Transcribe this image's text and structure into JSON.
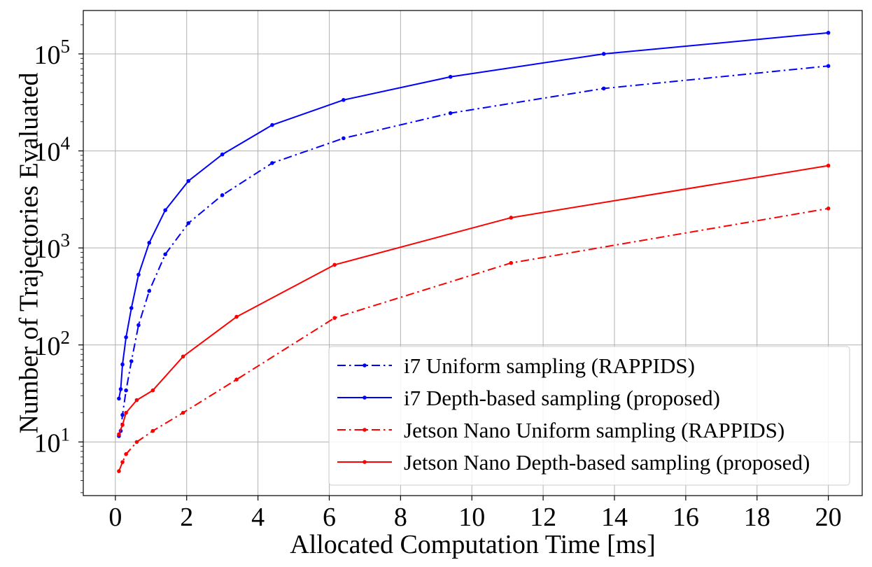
{
  "chart_data": {
    "type": "line",
    "xlabel": "Allocated Computation Time [ms]",
    "ylabel": "Number of Trajectories Evaluated",
    "xlim": [
      -0.9,
      20.95
    ],
    "ylim": [
      2.8,
      280000
    ],
    "yscale": "log",
    "xticks": [
      0,
      2,
      4,
      6,
      8,
      10,
      12,
      14,
      16,
      18,
      20
    ],
    "yticks": [
      {
        "value": 10,
        "base": "10",
        "exp": "1"
      },
      {
        "value": 100,
        "base": "10",
        "exp": "2"
      },
      {
        "value": 1000,
        "base": "10",
        "exp": "3"
      },
      {
        "value": 10000,
        "base": "10",
        "exp": "4"
      },
      {
        "value": 100000,
        "base": "10",
        "exp": "5"
      }
    ],
    "grid": true,
    "legend_position": "lower-right",
    "series": [
      {
        "name": "i7 Uniform sampling (RAPPIDS)",
        "color": "#0000ff",
        "dash": "dashdot",
        "x": [
          0.1,
          0.15,
          0.2,
          0.3,
          0.45,
          0.65,
          0.95,
          1.4,
          2.05,
          3.0,
          4.4,
          6.4,
          9.4,
          13.7,
          20.0
        ],
        "y": [
          11.5,
          13,
          19,
          34,
          68,
          160,
          360,
          860,
          1800,
          3500,
          7500,
          13500,
          24500,
          44000,
          75000
        ]
      },
      {
        "name": "i7 Depth-based sampling (proposed)",
        "color": "#0000ff",
        "dash": "solid",
        "x": [
          0.1,
          0.15,
          0.2,
          0.3,
          0.45,
          0.65,
          0.95,
          1.4,
          2.05,
          3.0,
          4.4,
          6.4,
          9.4,
          13.7,
          20.0
        ],
        "y": [
          28,
          35,
          63,
          120,
          240,
          530,
          1130,
          2450,
          4900,
          9200,
          18500,
          33500,
          58000,
          100000,
          165000
        ]
      },
      {
        "name": "Jetson Nano Uniform sampling (RAPPIDS)",
        "color": "#ff0000",
        "dash": "dashdot",
        "x": [
          0.1,
          0.2,
          0.3,
          0.6,
          1.05,
          1.9,
          3.4,
          6.15,
          11.1,
          20.0
        ],
        "y": [
          5,
          6.2,
          7.5,
          10,
          13,
          20,
          44,
          190,
          700,
          2550
        ]
      },
      {
        "name": "Jetson Nano Depth-based sampling (proposed)",
        "color": "#ff0000",
        "dash": "solid",
        "x": [
          0.1,
          0.2,
          0.3,
          0.6,
          1.05,
          1.9,
          3.4,
          6.15,
          11.1,
          20.0
        ],
        "y": [
          12,
          15,
          20,
          27,
          34,
          76,
          195,
          670,
          2050,
          7050
        ]
      }
    ]
  }
}
